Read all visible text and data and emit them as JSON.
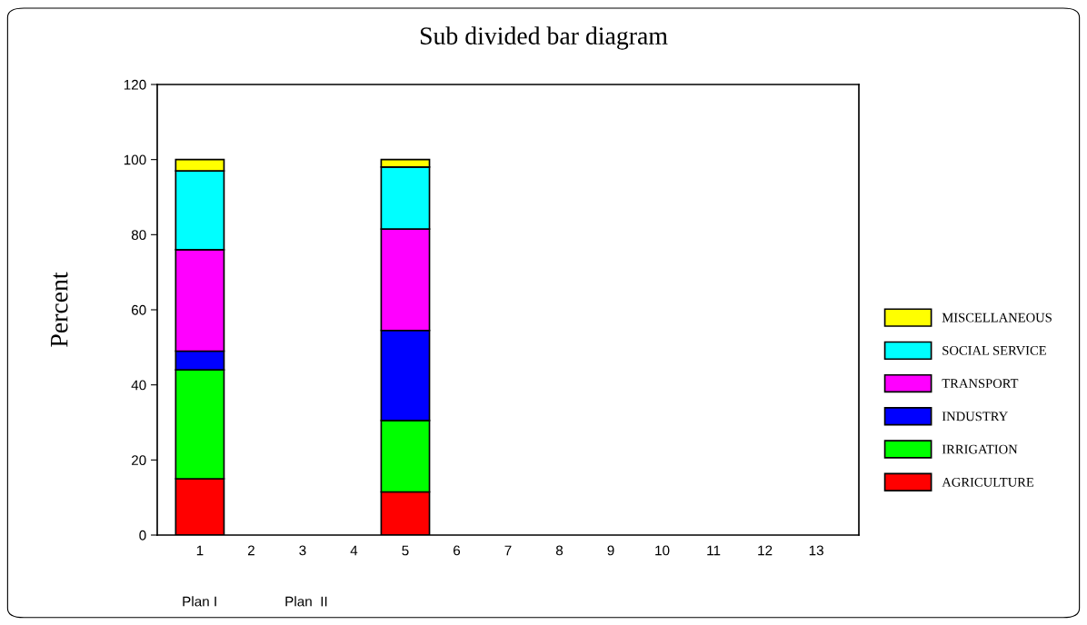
{
  "chart_data": {
    "type": "bar",
    "title": "Sub divided bar diagram",
    "ylabel": "Percent",
    "categories": [
      "1",
      "2",
      "3",
      "4",
      "5",
      "6",
      "7",
      "8",
      "9",
      "10",
      "11",
      "12",
      "13"
    ],
    "stacked": true,
    "series": [
      {
        "name": "AGRICULTURE",
        "color": "#ff0000",
        "values": [
          15,
          null,
          null,
          null,
          11.5,
          null,
          null,
          null,
          null,
          null,
          null,
          null,
          null
        ]
      },
      {
        "name": "IRRIGATION",
        "color": "#00ff00",
        "values": [
          29,
          null,
          null,
          null,
          19,
          null,
          null,
          null,
          null,
          null,
          null,
          null,
          null
        ]
      },
      {
        "name": "INDUSTRY",
        "color": "#0000ff",
        "values": [
          5,
          null,
          null,
          null,
          24,
          null,
          null,
          null,
          null,
          null,
          null,
          null,
          null
        ]
      },
      {
        "name": "TRANSPORT",
        "color": "#ff00ff",
        "values": [
          27,
          null,
          null,
          null,
          27,
          null,
          null,
          null,
          null,
          null,
          null,
          null,
          null
        ]
      },
      {
        "name": "SOCIAL SERVICE",
        "color": "#00ffff",
        "values": [
          21,
          null,
          null,
          null,
          16.5,
          null,
          null,
          null,
          null,
          null,
          null,
          null,
          null
        ]
      },
      {
        "name": "MISCELLANEOUS",
        "color": "#ffff00",
        "values": [
          3,
          null,
          null,
          null,
          2,
          null,
          null,
          null,
          null,
          null,
          null,
          null,
          null
        ]
      }
    ],
    "ylim": [
      0,
      120
    ],
    "yticks": [
      0,
      20,
      40,
      60,
      80,
      100,
      120
    ],
    "annotations": [
      "Plan I",
      "Plan  II"
    ],
    "legend": "right",
    "grid": false
  }
}
